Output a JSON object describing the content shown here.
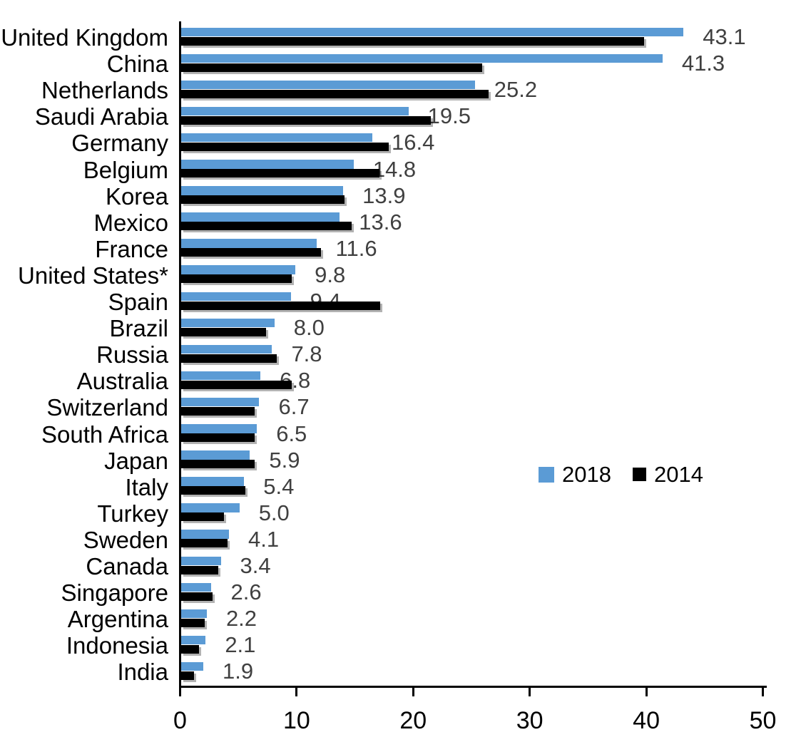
{
  "chart_data": {
    "type": "bar",
    "orientation": "horizontal",
    "title": "",
    "xlabel": "",
    "ylabel": "",
    "xlim": [
      0,
      50
    ],
    "x_ticks": [
      0,
      10,
      20,
      30,
      40,
      50
    ],
    "grid": false,
    "legend_position": "middle-right",
    "data_labels": "2018 series, one decimal",
    "categories": [
      "United Kingdom",
      "China",
      "Netherlands",
      "Saudi Arabia",
      "Germany",
      "Belgium",
      "Korea",
      "Mexico",
      "France",
      "United States*",
      "Spain",
      "Brazil",
      "Russia",
      "Australia",
      "Switzerland",
      "South Africa",
      "Japan",
      "Italy",
      "Turkey",
      "Sweden",
      "Canada",
      "Singapore",
      "Argentina",
      "Indonesia",
      "India"
    ],
    "series": [
      {
        "name": "2018",
        "color": "#5B9BD5",
        "values": [
          43.1,
          41.3,
          25.2,
          19.5,
          16.4,
          14.8,
          13.9,
          13.6,
          11.6,
          9.8,
          9.4,
          8.0,
          7.8,
          6.8,
          6.7,
          6.5,
          5.9,
          5.4,
          5.0,
          4.1,
          3.4,
          2.6,
          2.2,
          2.1,
          1.9
        ]
      },
      {
        "name": "2014",
        "color": "#000000",
        "values": [
          39.7,
          25.8,
          26.4,
          21.4,
          17.8,
          17.0,
          14.0,
          14.6,
          12.0,
          9.5,
          17.1,
          7.3,
          8.2,
          9.5,
          6.3,
          6.3,
          6.3,
          5.5,
          3.7,
          4.0,
          3.2,
          2.7,
          2.0,
          1.5,
          1.1
        ]
      }
    ]
  },
  "colors": {
    "bar_2018": "#5B9BD5",
    "bar_2014": "#000000",
    "value_label": "#404040",
    "axis": "#000000",
    "background": "#ffffff"
  }
}
